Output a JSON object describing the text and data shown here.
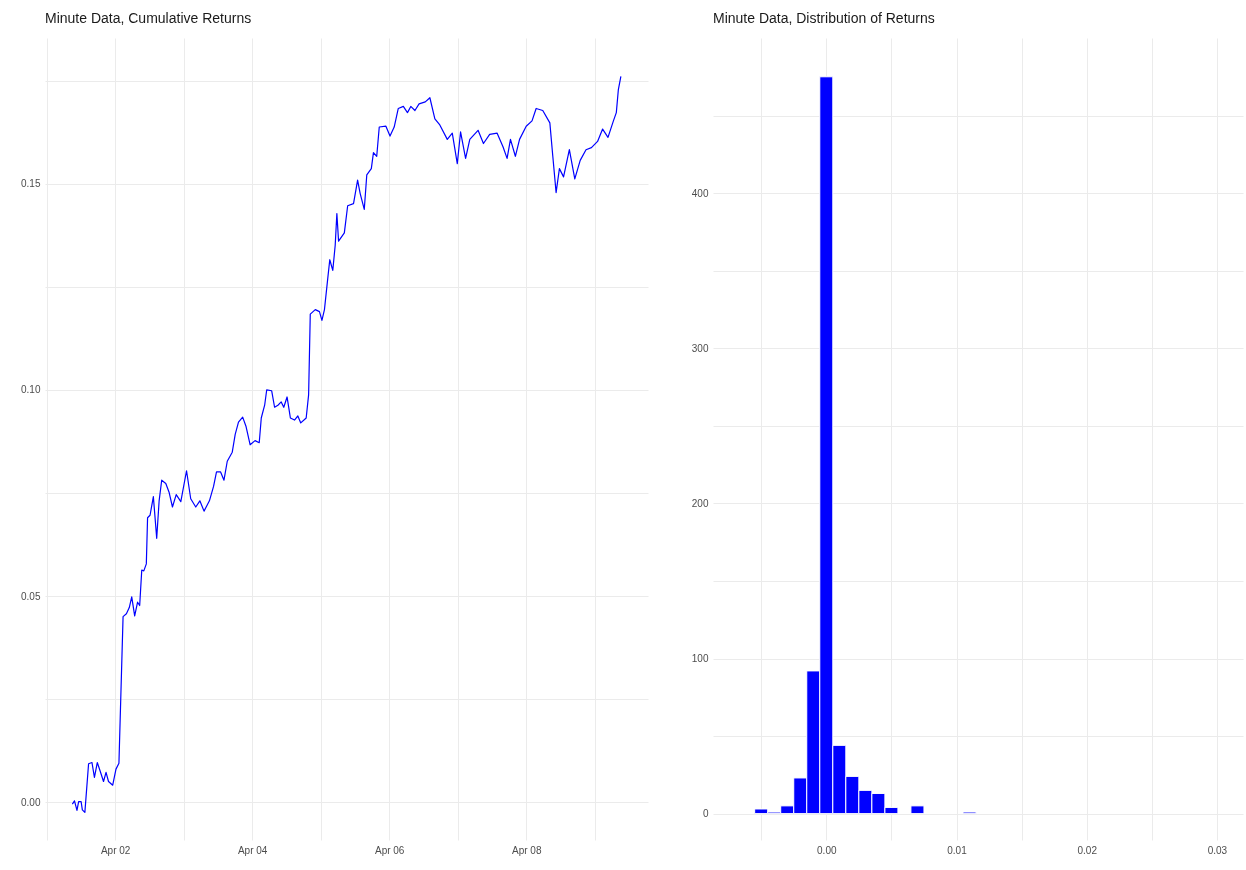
{
  "chart_data": [
    {
      "type": "line",
      "title": "Minute Data, Cumulative Returns",
      "color": "#0000ff",
      "grid": true,
      "x": [
        "--04-01T09:00",
        "--04-01T09:45",
        "--04-01T10:37",
        "--04-01T11:12",
        "--04-01T12:04",
        "--04-01T12:30",
        "--04-01T13:23",
        "--04-01T14:41",
        "--04-01T15:52",
        "--04-01T16:44",
        "--04-01T17:44",
        "--04-01T18:37",
        "--04-01T19:55",
        "--04-01T20:48",
        "--04-01T21:40",
        "--04-01T23:08",
        "--04-02T00:17",
        "--04-02T01:19",
        "--04-02T02:46",
        "--04-02T03:56",
        "--04-02T04:57",
        "--04-02T05:48",
        "--04-02T06:50",
        "--04-02T07:51",
        "--04-02T08:35",
        "--04-02T09:19",
        "--04-02T10:02",
        "--04-02T10:55",
        "--04-02T11:21",
        "--04-02T12:13",
        "--04-02T13:23",
        "--04-02T14:33",
        "--04-02T15:24",
        "--04-02T16:18",
        "--04-02T17:44",
        "--04-02T18:55",
        "--04-02T20:04",
        "--04-02T21:23",
        "--04-02T23:00",
        "--04-03T01:00",
        "--04-03T02:28",
        "--04-03T04:14",
        "--04-03T05:40",
        "--04-03T07:08",
        "--04-03T09:01",
        "--04-03T10:28",
        "--04-03T11:30",
        "--04-03T12:56",
        "--04-03T14:07",
        "--04-03T15:16",
        "--04-03T17:01",
        "--04-03T18:03",
        "--04-03T19:12",
        "--04-03T20:40",
        "--04-03T21:49",
        "--04-03T23:17",
        "--04-04T01:00",
        "--04-04T02:28",
        "--04-04T03:11",
        "--04-04T04:22",
        "--04-04T05:05",
        "--04-04T06:50",
        "--04-04T07:51",
        "--04-04T09:01",
        "--04-04T10:10",
        "--04-04T11:04",
        "--04-04T12:13",
        "--04-04T13:23",
        "--04-04T14:50",
        "--04-04T16:00",
        "--04-04T17:01",
        "--04-04T18:55",
        "--04-04T19:46",
        "--04-04T20:21",
        "--04-04T22:06",
        "--04-04T23:34",
        "--04-05T00:26",
        "--04-05T01:19",
        "--04-05T02:28",
        "--04-05T03:11",
        "--04-05T04:14",
        "--04-05T05:05",
        "--04-05T05:40",
        "--04-05T06:16",
        "--04-05T08:17",
        "--04-05T09:27",
        "--04-05T11:30",
        "--04-05T12:56",
        "--04-05T13:49",
        "--04-05T15:16",
        "--04-05T16:09",
        "--04-05T17:44",
        "--04-05T18:29",
        "--04-05T19:38",
        "--04-05T20:31",
        "--04-05T22:51",
        "--04-06T00:17",
        "--04-06T01:45",
        "--04-06T03:11",
        "--04-06T04:57",
        "--04-06T06:24",
        "--04-06T07:34",
        "--04-06T09:01",
        "--04-06T10:28",
        "--04-06T12:39",
        "--04-06T14:15",
        "--04-06T16:00",
        "--04-06T17:44",
        "--04-06T20:21",
        "--04-06T22:06",
        "--04-06T23:51",
        "--04-07T01:00",
        "--04-07T02:46",
        "--04-07T04:14",
        "--04-07T07:08",
        "--04-07T09:01",
        "--04-07T11:12",
        "--04-07T13:49",
        "--04-07T15:52",
        "--04-07T17:18",
        "--04-07T18:29",
        "--04-07T20:12",
        "--04-07T21:40",
        "--04-08T00:00",
        "--04-08T02:02",
        "--04-08T03:29",
        "--04-08T05:48",
        "--04-08T08:17",
        "--04-08T09:19",
        "--04-08T10:28",
        "--04-08T11:38",
        "--04-08T13:05",
        "--04-08T15:07",
        "--04-08T17:01",
        "--04-08T18:55",
        "--04-08T20:57",
        "--04-08T22:51",
        "--04-09T01:00",
        "--04-09T02:46",
        "--04-09T04:39",
        "--04-09T06:33",
        "--04-09T07:34",
        "--04-09T08:17",
        "--04-09T09:10"
      ],
      "values": [
        -0.0005,
        0.0003,
        -0.002,
        0.0001,
        0.0001,
        -0.0019,
        -0.0025,
        0.0093,
        0.0096,
        0.006,
        0.0096,
        0.0078,
        0.005,
        0.0072,
        0.005,
        0.0041,
        0.008,
        0.0094,
        0.045,
        0.0457,
        0.0472,
        0.0498,
        0.0452,
        0.0485,
        0.0477,
        0.0563,
        0.0561,
        0.0578,
        0.069,
        0.0696,
        0.0741,
        0.064,
        0.0731,
        0.0781,
        0.0773,
        0.0751,
        0.0716,
        0.0746,
        0.0729,
        0.0804,
        0.0736,
        0.0716,
        0.0731,
        0.0706,
        0.0731,
        0.0766,
        0.0801,
        0.0801,
        0.0781,
        0.0827,
        0.0849,
        0.0892,
        0.0922,
        0.0934,
        0.0912,
        0.0867,
        0.0877,
        0.0872,
        0.0932,
        0.0963,
        0.1,
        0.0998,
        0.0958,
        0.0963,
        0.0971,
        0.0958,
        0.0983,
        0.0932,
        0.0927,
        0.0937,
        0.092,
        0.0932,
        0.0988,
        0.1184,
        0.1195,
        0.119,
        0.1169,
        0.1195,
        0.127,
        0.1316,
        0.129,
        0.1351,
        0.1428,
        0.1361,
        0.1381,
        0.1447,
        0.1452,
        0.1509,
        0.1477,
        0.1438,
        0.1522,
        0.1537,
        0.1576,
        0.1567,
        0.1638,
        0.164,
        0.1616,
        0.1638,
        0.1683,
        0.1688,
        0.1673,
        0.1688,
        0.1678,
        0.1694,
        0.1699,
        0.1709,
        0.1658,
        0.1643,
        0.1608,
        0.1623,
        0.1549,
        0.1626,
        0.1562,
        0.1608,
        0.163,
        0.1598,
        0.162,
        0.1623,
        0.159,
        0.1562,
        0.1608,
        0.1567,
        0.1608,
        0.164,
        0.1653,
        0.1683,
        0.1678,
        0.1648,
        0.1567,
        0.1479,
        0.1537,
        0.1517,
        0.1583,
        0.1512,
        0.1557,
        0.1583,
        0.1588,
        0.1603,
        0.1633,
        0.1613,
        0.1653,
        0.1673,
        0.1729,
        0.1761
      ],
      "xlim": [
        "--03-31T23:25",
        "--04-09T18:40"
      ],
      "xticks": [
        {
          "value": "--04-01",
          "label": null
        },
        {
          "value": "--04-02",
          "label": "Apr 02"
        },
        {
          "value": "--04-03",
          "label": null
        },
        {
          "value": "--04-04",
          "label": "Apr 04"
        },
        {
          "value": "--04-05",
          "label": null
        },
        {
          "value": "--04-06",
          "label": "Apr 06"
        },
        {
          "value": "--04-07",
          "label": null
        },
        {
          "value": "--04-08",
          "label": "Apr 08"
        },
        {
          "value": "--04-09",
          "label": null
        }
      ],
      "ylim": [
        -0.0092,
        0.1854
      ],
      "yticks": [
        {
          "value": 0,
          "label": "0.00"
        },
        {
          "value": 0.025,
          "label": null
        },
        {
          "value": 0.05,
          "label": "0.05"
        },
        {
          "value": 0.075,
          "label": null
        },
        {
          "value": 0.1,
          "label": "0.10"
        },
        {
          "value": 0.125,
          "label": null
        },
        {
          "value": 0.15,
          "label": "0.15"
        },
        {
          "value": 0.175,
          "label": null
        }
      ]
    },
    {
      "type": "histogram",
      "title": "Minute Data, Distribution of Returns",
      "color": "#0000ff",
      "grid": true,
      "bins": [
        -0.0055,
        -0.0045,
        -0.0035,
        -0.0025,
        -0.0015,
        -0.0005,
        0.0005,
        0.0015,
        0.0025,
        0.0035,
        0.0045,
        0.0055,
        0.0065,
        0.0075,
        0.0085,
        0.0095,
        0.0105,
        0.0115
      ],
      "values": [
        3,
        1,
        5,
        23,
        92,
        475,
        44,
        24,
        15,
        13,
        4,
        0,
        5,
        0,
        0,
        0,
        1
      ],
      "xlim": [
        -0.0087,
        0.032
      ],
      "xticks": [
        {
          "value": -0.005,
          "label": null
        },
        {
          "value": 0,
          "label": "0.00"
        },
        {
          "value": 0.005,
          "label": null
        },
        0.01,
        {
          "value": 0.015,
          "label": null
        },
        0.02,
        {
          "value": 0.025,
          "label": null
        },
        0.03
      ],
      "ylim": [
        -17,
        500
      ],
      "yticks": [
        0,
        {
          "value": 50,
          "label": null
        },
        100,
        {
          "value": 150,
          "label": null
        },
        200,
        {
          "value": 250,
          "label": null
        },
        300,
        {
          "value": 350,
          "label": null
        },
        400,
        {
          "value": 450,
          "label": null
        }
      ]
    }
  ]
}
